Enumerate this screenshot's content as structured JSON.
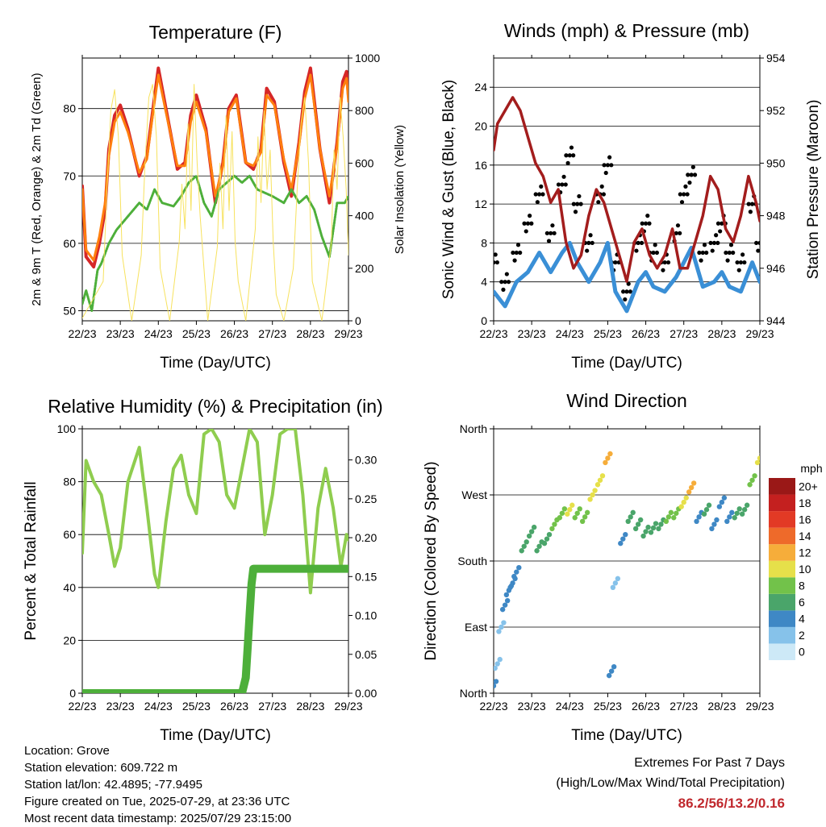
{
  "xticks": [
    "22/23",
    "23/23",
    "24/23",
    "25/23",
    "26/23",
    "27/23",
    "28/23",
    "29/23"
  ],
  "footer": {
    "location": "Location: Grove",
    "elevation": "Station elevation: 609.722 m",
    "latlon": "Station lat/lon: 42.4895; -77.9495",
    "created": "Figure created on Tue, 2025-07-29, at 23:36 UTC",
    "recent": "Most recent data timestamp: 2025/07/29 23:15:00",
    "extremes_title": "Extremes For Past 7 Days",
    "extremes_subtitle": "(High/Low/Max Wind/Total Precipitation)",
    "extremes_values": "86.2/56/13.2/0.16"
  },
  "chart_data": [
    {
      "type": "line",
      "title": "Temperature (F)",
      "xlabel": "Time (Day/UTC)",
      "ylabel": "2m & 9m T (Red, Orange) & 2m Td (Green)",
      "ylabel_right": "Solar Insolation (Yellow)",
      "ylim": [
        48.5,
        87.5
      ],
      "yticks": [
        50,
        60,
        70,
        80
      ],
      "y2lim": [
        0,
        1000
      ],
      "y2ticks": [
        0,
        200,
        400,
        600,
        800,
        1000
      ],
      "xlim": [
        0,
        7
      ],
      "series": [
        {
          "color": "#d62728",
          "axis": "left",
          "width": 4,
          "x": [
            0,
            0.1,
            0.3,
            0.45,
            0.6,
            0.7,
            0.85,
            1.0,
            1.2,
            1.5,
            1.7,
            1.85,
            2.0,
            2.2,
            2.5,
            2.7,
            2.85,
            3.0,
            3.25,
            3.5,
            3.7,
            3.85,
            4.05,
            4.3,
            4.5,
            4.7,
            4.85,
            5.05,
            5.3,
            5.5,
            5.7,
            5.85,
            6.0,
            6.25,
            6.5,
            6.7,
            6.85,
            6.95,
            7.0
          ],
          "values": [
            68.5,
            58,
            56.5,
            60,
            65,
            74,
            79,
            80.5,
            77,
            70,
            73,
            79.5,
            86,
            80,
            71,
            72,
            79,
            82,
            77,
            66,
            72,
            80,
            82,
            72,
            71,
            74,
            83,
            81,
            72,
            67,
            75,
            82.5,
            86,
            74,
            66,
            75,
            84,
            85.5,
            82
          ]
        },
        {
          "color": "#ff7f0e",
          "axis": "left",
          "width": 3,
          "x": [
            0,
            0.1,
            0.3,
            0.45,
            0.6,
            0.7,
            0.85,
            1.0,
            1.2,
            1.5,
            1.7,
            1.85,
            2.0,
            2.2,
            2.5,
            2.7,
            2.85,
            3.0,
            3.25,
            3.5,
            3.7,
            3.85,
            4.05,
            4.3,
            4.5,
            4.7,
            4.85,
            5.05,
            5.3,
            5.5,
            5.7,
            5.85,
            6.0,
            6.25,
            6.5,
            6.7,
            6.85,
            6.95,
            7.0
          ],
          "values": [
            68,
            59,
            57.5,
            61,
            66,
            73,
            78,
            79.5,
            76.5,
            70.5,
            72.5,
            79,
            85,
            79.5,
            71.5,
            71.5,
            78,
            81,
            76.5,
            67,
            71.5,
            79.5,
            81.5,
            72,
            71.5,
            73.5,
            82,
            80.5,
            72.5,
            68,
            74.5,
            81.5,
            85,
            74,
            67,
            74.5,
            83,
            84.5,
            81
          ]
        },
        {
          "color": "#4daf3a",
          "axis": "left",
          "width": 3,
          "dotted": true,
          "x": [
            0,
            0.1,
            0.25,
            0.4,
            0.5,
            0.7,
            0.9,
            1.2,
            1.5,
            1.7,
            1.9,
            2.1,
            2.4,
            2.6,
            2.8,
            3.0,
            3.2,
            3.4,
            3.6,
            3.8,
            4.0,
            4.2,
            4.4,
            4.6,
            4.8,
            5.0,
            5.3,
            5.5,
            5.7,
            5.9,
            6.1,
            6.3,
            6.5,
            6.7,
            6.9,
            7.0
          ],
          "values": [
            51,
            53,
            50,
            56,
            57,
            60,
            62,
            64,
            66,
            65,
            68,
            66,
            65.5,
            67,
            69,
            70,
            66,
            64,
            68,
            69,
            70,
            69,
            70,
            68,
            67.5,
            67,
            66,
            68,
            66,
            67,
            65,
            61,
            58,
            66,
            66,
            67
          ]
        },
        {
          "color": "#f7e25e",
          "axis": "right",
          "width": 1,
          "x": [
            0,
            0.55,
            0.65,
            0.75,
            0.85,
            0.95,
            1.05,
            1.3,
            1.55,
            1.65,
            1.75,
            1.85,
            1.95,
            2.05,
            2.3,
            2.55,
            2.62,
            2.7,
            2.78,
            2.86,
            2.94,
            3.02,
            3.1,
            3.3,
            3.55,
            3.62,
            3.7,
            3.78,
            3.86,
            3.94,
            4.02,
            4.1,
            4.3,
            4.55,
            4.62,
            4.7,
            4.78,
            4.86,
            4.94,
            5.02,
            5.1,
            5.3,
            5.55,
            5.65,
            5.75,
            5.85,
            5.95,
            6.05,
            6.3,
            6.55,
            6.62,
            6.7,
            6.78,
            6.86,
            6.94,
            7.0
          ],
          "values": [
            10,
            150,
            500,
            800,
            880,
            700,
            250,
            0,
            250,
            600,
            850,
            900,
            700,
            200,
            0,
            300,
            520,
            350,
            750,
            420,
            900,
            600,
            400,
            0,
            280,
            600,
            350,
            780,
            420,
            720,
            300,
            150,
            0,
            350,
            700,
            450,
            800,
            500,
            650,
            300,
            100,
            0,
            200,
            500,
            750,
            850,
            600,
            150,
            0,
            300,
            650,
            500,
            850,
            700,
            500,
            250
          ]
        }
      ]
    },
    {
      "type": "scatter",
      "title": "Winds (mph) & Pressure (mb)",
      "xlabel": "Time (Day/UTC)",
      "ylabel": "Sonic Wind & Gust (Blue, Black)",
      "ylabel_right": "Station Pressure (Maroon)",
      "ylim": [
        0,
        27
      ],
      "yticks": [
        0,
        4,
        8,
        12,
        16,
        20,
        24
      ],
      "y2lim": [
        944,
        954
      ],
      "y2ticks": [
        944,
        946,
        948,
        950,
        952,
        954
      ],
      "xlim": [
        0,
        7
      ],
      "series": [
        {
          "color": "#000000",
          "axis": "left",
          "kind": "points",
          "x": [
            0,
            0.3,
            0.6,
            0.9,
            1.2,
            1.5,
            1.8,
            2.0,
            2.2,
            2.5,
            2.8,
            3.0,
            3.2,
            3.5,
            3.8,
            4.0,
            4.2,
            4.5,
            4.8,
            5.0,
            5.2,
            5.5,
            5.8,
            6.0,
            6.2,
            6.5,
            6.8,
            7.0
          ],
          "values": [
            6,
            4,
            7,
            10,
            13,
            9,
            14,
            17,
            12,
            8,
            13,
            16,
            6,
            3,
            8,
            10,
            7,
            6,
            9,
            13,
            15,
            7,
            8,
            10,
            7,
            6,
            12,
            8
          ]
        },
        {
          "color": "#3a8fd6",
          "axis": "left",
          "kind": "band",
          "x": [
            0,
            0.3,
            0.6,
            0.9,
            1.2,
            1.5,
            1.8,
            2.0,
            2.2,
            2.5,
            2.8,
            3.0,
            3.2,
            3.5,
            3.8,
            4.0,
            4.2,
            4.5,
            4.8,
            5.0,
            5.2,
            5.5,
            5.8,
            6.0,
            6.2,
            6.5,
            6.8,
            7.0
          ],
          "values": [
            3,
            1.5,
            4,
            5,
            7,
            5,
            7,
            8,
            6,
            4,
            6,
            8,
            3,
            1,
            4,
            5,
            3.5,
            3,
            4.5,
            6,
            7.5,
            3.5,
            4,
            5,
            3.5,
            3,
            6,
            4
          ]
        },
        {
          "color": "#a31d1d",
          "axis": "right",
          "kind": "line",
          "x": [
            0,
            0.1,
            0.3,
            0.5,
            0.7,
            0.9,
            1.1,
            1.3,
            1.5,
            1.7,
            1.9,
            2.1,
            2.3,
            2.5,
            2.7,
            2.9,
            3.1,
            3.3,
            3.5,
            3.7,
            3.9,
            4.1,
            4.3,
            4.5,
            4.7,
            4.9,
            5.1,
            5.3,
            5.5,
            5.7,
            5.9,
            6.1,
            6.3,
            6.5,
            6.7,
            6.9,
            7.0
          ],
          "values": [
            950.5,
            951.5,
            952,
            952.5,
            952,
            951,
            950,
            949.5,
            948.5,
            949,
            947,
            946,
            946.5,
            948,
            949,
            948.5,
            947.5,
            946.5,
            945.5,
            947,
            947.5,
            946.5,
            946,
            946.5,
            947.5,
            946,
            946,
            947,
            948,
            949.5,
            949,
            947.5,
            947,
            948,
            949.5,
            948.5,
            947.8
          ]
        }
      ]
    },
    {
      "type": "line",
      "title": "Relative Humidity (%) & Precipitation (in)",
      "xlabel": "Time (Day/UTC)",
      "ylabel": "Percent & Total Rainfall",
      "ylim": [
        0,
        100
      ],
      "yticks": [
        0,
        20,
        40,
        60,
        80,
        100
      ],
      "y2lim": [
        0,
        0.34
      ],
      "y2ticks": [
        0.0,
        0.05,
        0.1,
        0.15,
        0.2,
        0.25,
        0.3
      ],
      "xlim": [
        0,
        7
      ],
      "series": [
        {
          "color": "#8fcd4f",
          "axis": "left",
          "width": 4,
          "x": [
            0,
            0.1,
            0.3,
            0.5,
            0.7,
            0.85,
            1.0,
            1.2,
            1.5,
            1.7,
            1.9,
            2.0,
            2.2,
            2.4,
            2.6,
            2.8,
            3.0,
            3.2,
            3.4,
            3.6,
            3.8,
            4.0,
            4.2,
            4.4,
            4.6,
            4.8,
            5.0,
            5.2,
            5.4,
            5.6,
            5.8,
            6.0,
            6.2,
            6.4,
            6.6,
            6.8,
            6.95,
            7.0
          ],
          "values": [
            53,
            88,
            80,
            75,
            60,
            48,
            55,
            80,
            93,
            70,
            45,
            40,
            65,
            85,
            90,
            75,
            68,
            98,
            100,
            95,
            75,
            70,
            85,
            100,
            95,
            60,
            75,
            98,
            100,
            100,
            75,
            38,
            70,
            85,
            70,
            48,
            60,
            58
          ]
        },
        {
          "color": "#4daf3a",
          "axis": "right",
          "width": 10,
          "x": [
            0,
            4.2,
            4.3,
            4.35,
            4.4,
            4.45,
            4.5,
            7.0
          ],
          "values": [
            0,
            0,
            0.02,
            0.06,
            0.1,
            0.14,
            0.16,
            0.16
          ]
        }
      ]
    },
    {
      "type": "scatter",
      "title": "Wind Direction",
      "xlabel": "Time (Day/UTC)",
      "ylabel": "Direction (Colored By Speed)",
      "ytick_labels": [
        "North",
        "East",
        "South",
        "West",
        "North"
      ],
      "ytick_values": [
        0,
        90,
        180,
        270,
        360
      ],
      "ylim": [
        0,
        360
      ],
      "xlim": [
        0,
        7
      ],
      "colorbar_label": "mph",
      "colorbar_ticks": [
        "0",
        "2",
        "4",
        "6",
        "8",
        "10",
        "12",
        "14",
        "16",
        "18",
        "20+"
      ],
      "colorbar_colors": [
        "#cde9f7",
        "#86c2ea",
        "#3f88c5",
        "#4aa56a",
        "#72c24a",
        "#e6e04a",
        "#f6ad3a",
        "#ee6a2a",
        "#e23a25",
        "#c4201f",
        "#9a1817"
      ],
      "series": [
        {
          "x": [
            0,
            0.1,
            0.2,
            0.3,
            0.4,
            0.5,
            0.6,
            0.8,
            1.0,
            1.2,
            1.4,
            1.6,
            1.8,
            2.0,
            2.2,
            2.4,
            2.6,
            2.8,
            3.0,
            3.1,
            3.2,
            3.4,
            3.6,
            3.8,
            4.0,
            4.2,
            4.4,
            4.6,
            4.8,
            5.0,
            5.2,
            5.4,
            5.6,
            5.8,
            6.0,
            6.2,
            6.4,
            6.6,
            6.8,
            7.0
          ],
          "values": [
            10,
            40,
            90,
            120,
            140,
            150,
            165,
            200,
            220,
            200,
            210,
            230,
            245,
            250,
            245,
            240,
            270,
            290,
            320,
            30,
            150,
            210,
            240,
            230,
            220,
            225,
            230,
            240,
            245,
            260,
            280,
            240,
            250,
            230,
            260,
            240,
            245,
            250,
            290,
            320
          ],
          "speeds": [
            3,
            2,
            2,
            3,
            3,
            4,
            4,
            5,
            6,
            5,
            6,
            7,
            8,
            10,
            8,
            7,
            9,
            10,
            12,
            3,
            2,
            3,
            5,
            6,
            6,
            5,
            6,
            7,
            8,
            9,
            11,
            4,
            5,
            4,
            3,
            4,
            5,
            5,
            8,
            10
          ]
        }
      ]
    }
  ]
}
